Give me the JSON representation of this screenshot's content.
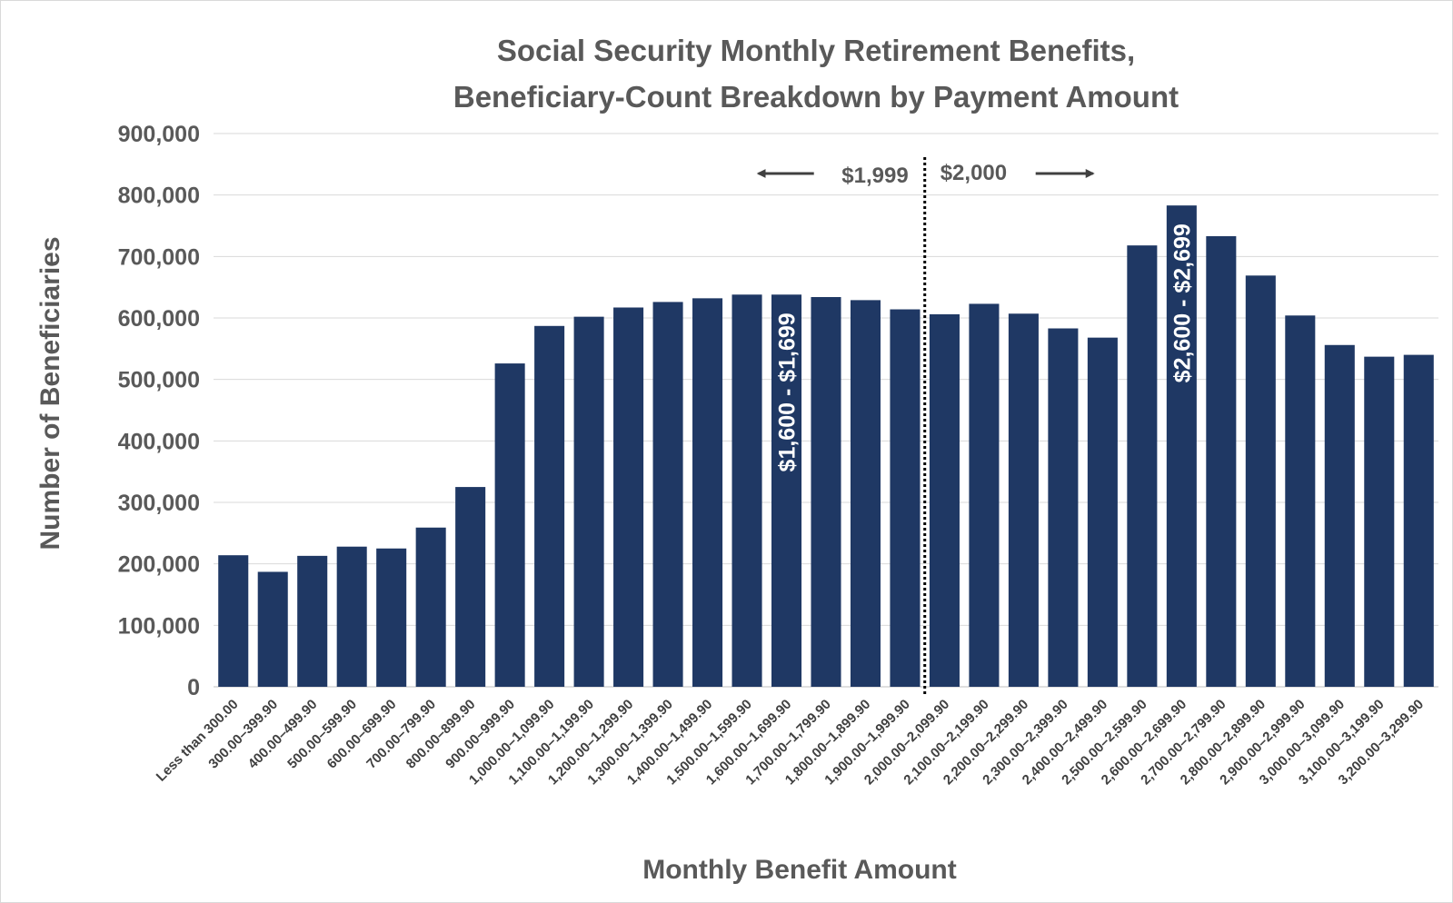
{
  "chart_data": {
    "type": "bar",
    "title_lines": [
      "Social Security Monthly Retirement Benefits,",
      "Beneficiary-Count Breakdown by Payment Amount"
    ],
    "xlabel": "Monthly Benefit Amount",
    "ylabel": "Number of Beneficiaries",
    "ylim": [
      0,
      900000
    ],
    "yticks": [
      0,
      100000,
      200000,
      300000,
      400000,
      500000,
      600000,
      700000,
      800000,
      900000
    ],
    "ytick_labels": [
      "0",
      "100,000",
      "200,000",
      "300,000",
      "400,000",
      "500,000",
      "600,000",
      "700,000",
      "800,000",
      "900,000"
    ],
    "grid": "horizontal",
    "legend": "none",
    "categories": [
      "Less than 300.00",
      "300.00–399.90",
      "400.00–499.90",
      "500.00–599.90",
      "600.00–699.90",
      "700.00–799.90",
      "800.00–899.90",
      "900.00–999.90",
      "1,000.00–1,099.90",
      "1,100.00–1,199.90",
      "1,200.00–1,299.90",
      "1,300.00–1,399.90",
      "1,400.00–1,499.90",
      "1,500.00–1,599.90",
      "1,600.00–1,699.90",
      "1,700.00–1,799.90",
      "1,800.00–1,899.90",
      "1,900.00–1,999.90",
      "2,000.00–2,099.90",
      "2,100.00–2,199.90",
      "2,200.00–2,299.90",
      "2,300.00–2,399.90",
      "2,400.00–2,499.90",
      "2,500.00–2,599.90",
      "2,600.00–2,699.90",
      "2,700.00–2,799.90",
      "2,800.00–2,899.90",
      "2,900.00–2,999.90",
      "3,000.00–3,099.90",
      "3,100.00–3,199.90",
      "3,200.00–3,299.90"
    ],
    "values": [
      214000,
      187000,
      213000,
      228000,
      225000,
      259000,
      325000,
      526000,
      587000,
      602000,
      617000,
      626000,
      632000,
      638000,
      638000,
      634000,
      629000,
      614000,
      606000,
      623000,
      607000,
      583000,
      568000,
      718000,
      783000,
      733000,
      669000,
      604000,
      556000,
      537000,
      540000
    ],
    "bar_color": "#1f3864",
    "annotations": {
      "divider_after_category": "1,900.00–1,999.90",
      "left_label": "$1,999",
      "right_label": "$2,000",
      "inbar_labels": [
        {
          "category": "1,600.00–1,699.90",
          "text": "$1,600 - $1,699"
        },
        {
          "category": "2,600.00–2,699.90",
          "text": "$2,600 - $2,699"
        }
      ]
    }
  },
  "colors": {
    "bar": "#1f3864",
    "text": "#595959",
    "grid": "#d9d9d9",
    "inbar_text": "#ffffff"
  }
}
